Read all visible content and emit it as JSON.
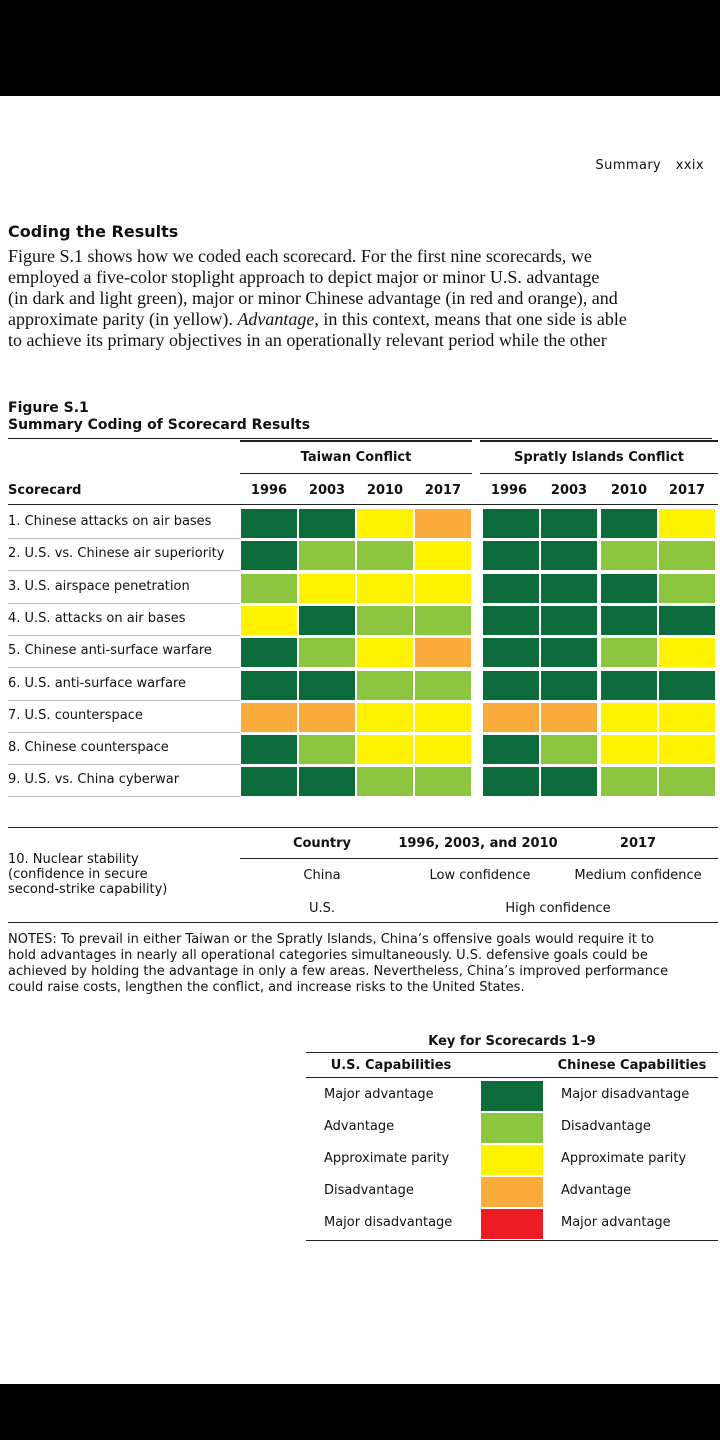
{
  "header": {
    "section": "Summary",
    "page_number": "xxix"
  },
  "section_title": "Coding the Results",
  "paragraph_lines": [
    "Figure S.1 shows how we coded each scorecard. For the first nine scorecards, we",
    "employed a five-color stoplight approach to depict major or minor U.S. advantage",
    "(in dark and light green), major or minor Chinese advantage (in red and orange), and",
    "approximate parity (in yellow). ",
    "Advantage",
    ", in this context, means that one side is able",
    "to achieve its primary objectives in an operationally relevant period while the other"
  ],
  "figure": {
    "label": "Figure S.1",
    "title": "Summary Coding of Scorecard Results",
    "group_taiwan": "Taiwan Conflict",
    "group_spratly": "Spratly Islands Conflict",
    "scorecard_header": "Scorecard",
    "years": [
      "1996",
      "2003",
      "2010",
      "2017",
      "1996",
      "2003",
      "2010",
      "2017"
    ],
    "rows": [
      {
        "label": "1. Chinese attacks on air bases",
        "codes": [
          "MA",
          "MA",
          "AP",
          "D",
          "MA",
          "MA",
          "MA",
          "AP"
        ]
      },
      {
        "label": "2. U.S. vs. Chinese air superiority",
        "codes": [
          "MA",
          "A",
          "A",
          "AP",
          "MA",
          "MA",
          "A",
          "A"
        ]
      },
      {
        "label": "3. U.S. airspace penetration",
        "codes": [
          "A",
          "AP",
          "AP",
          "AP",
          "MA",
          "MA",
          "MA",
          "A"
        ]
      },
      {
        "label": "4. U.S. attacks on air bases",
        "codes": [
          "AP",
          "MA",
          "A",
          "A",
          "MA",
          "MA",
          "MA",
          "MA"
        ]
      },
      {
        "label": "5. Chinese anti-surface warfare",
        "codes": [
          "MA",
          "A",
          "AP",
          "D",
          "MA",
          "MA",
          "A",
          "AP"
        ]
      },
      {
        "label": "6. U.S. anti-surface warfare",
        "codes": [
          "MA",
          "MA",
          "A",
          "A",
          "MA",
          "MA",
          "MA",
          "MA"
        ]
      },
      {
        "label": "7. U.S. counterspace",
        "codes": [
          "D",
          "D",
          "AP",
          "AP",
          "D",
          "D",
          "AP",
          "AP"
        ]
      },
      {
        "label": "8. Chinese counterspace",
        "codes": [
          "MA",
          "A",
          "AP",
          "AP",
          "MA",
          "A",
          "AP",
          "AP"
        ]
      },
      {
        "label": "9. U.S. vs. China cyberwar",
        "codes": [
          "MA",
          "MA",
          "A",
          "A",
          "MA",
          "MA",
          "A",
          "A"
        ]
      }
    ],
    "colors": {
      "MA": "#0b6b3a",
      "A": "#8cc63f",
      "AP": "#fff200",
      "D": "#f9ac3c",
      "MD": "#ed1c24"
    }
  },
  "nuclear": {
    "label_lines": [
      "10. Nuclear stability",
      "(confidence in secure",
      "second-strike capability)"
    ],
    "col_country": "Country",
    "col_early": "1996, 2003, and 2010",
    "col_2017": "2017",
    "china": "China",
    "china_early": "Low confidence",
    "china_2017": "Medium confidence",
    "us": "U.S.",
    "us_all": "High confidence"
  },
  "notes_lines": [
    "NOTES: To prevail in either Taiwan or the Spratly Islands, China’s offensive goals would require it to",
    "hold advantages in nearly all operational categories simultaneously. U.S. defensive goals could be",
    "achieved by holding the advantage in only a few areas. Nevertheless, China’s improved performance",
    "could raise costs, lengthen the conflict, and increase risks to the United States."
  ],
  "key": {
    "title": "Key for Scorecards 1–9",
    "us_header": "U.S. Capabilities",
    "cn_header": "Chinese Capabilities",
    "rows": [
      {
        "us": "Major advantage",
        "cn": "Major disadvantage",
        "code": "MA"
      },
      {
        "us": "Advantage",
        "cn": "Disadvantage",
        "code": "A"
      },
      {
        "us": "Approximate parity",
        "cn": "Approximate parity",
        "code": "AP"
      },
      {
        "us": "Disadvantage",
        "cn": "Advantage",
        "code": "D"
      },
      {
        "us": "Major disadvantage",
        "cn": "Major advantage",
        "code": "MD"
      }
    ]
  }
}
